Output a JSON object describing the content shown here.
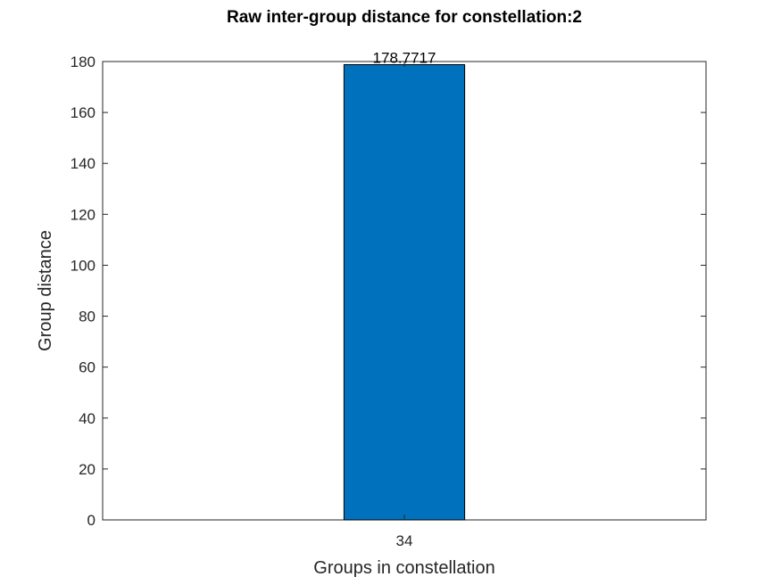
{
  "chart_data": {
    "type": "bar",
    "title": "Raw inter-group distance for constellation:2",
    "xlabel": "Groups in constellation",
    "ylabel": "Group distance",
    "categories": [
      "34"
    ],
    "values": [
      178.7717
    ],
    "data_labels": [
      "178.7717"
    ],
    "ylim": [
      0,
      180
    ],
    "yticks": [
      0,
      20,
      40,
      60,
      80,
      100,
      120,
      140,
      160,
      180
    ],
    "grid": false,
    "legend": "none",
    "bar_color": "#0072BD",
    "bar_edge_color": "#000000"
  }
}
